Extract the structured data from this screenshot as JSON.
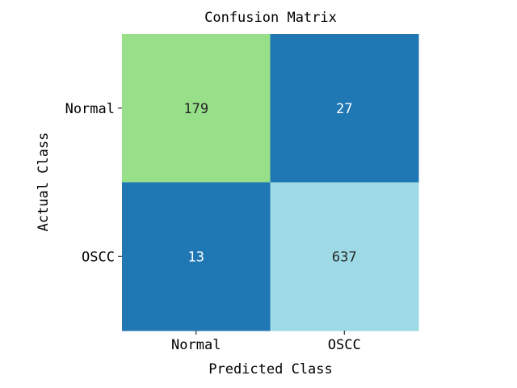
{
  "chart_data": {
    "type": "heatmap",
    "title": "Confusion Matrix",
    "xlabel": "Predicted Class",
    "ylabel": "Actual Class",
    "x_categories": [
      "Normal",
      "OSCC"
    ],
    "y_categories": [
      "Normal",
      "OSCC"
    ],
    "values": [
      [
        179,
        27
      ],
      [
        13,
        637
      ]
    ],
    "cell_colors": [
      [
        "#98df8a",
        "#1f77b4"
      ],
      [
        "#1f77b4",
        "#9edae5"
      ]
    ],
    "text_colors": [
      [
        "#262626",
        "#ffffff"
      ],
      [
        "#ffffff",
        "#262626"
      ]
    ],
    "grid": false,
    "colorbar": false
  }
}
